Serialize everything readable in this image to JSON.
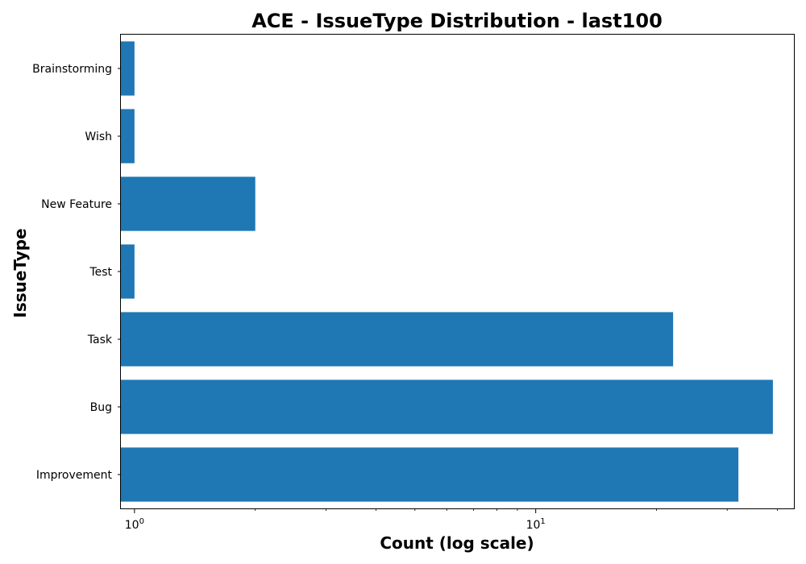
{
  "chart_data": {
    "type": "bar",
    "orientation": "horizontal",
    "title": "ACE - IssueType Distribution - last100",
    "xlabel": "Count (log scale)",
    "ylabel": "IssueType",
    "xscale": "log",
    "xlim": [
      0.925,
      44
    ],
    "categories": [
      "Improvement",
      "Bug",
      "Task",
      "Test",
      "New Feature",
      "Wish",
      "Brainstorming"
    ],
    "values": [
      32,
      39,
      22,
      1,
      2,
      1,
      1
    ],
    "xticks": [
      {
        "value": 1,
        "base": "10",
        "exp": "0"
      },
      {
        "value": 10,
        "base": "10",
        "exp": "1"
      }
    ],
    "minor_ticks": [
      2,
      3,
      4,
      5,
      6,
      7,
      8,
      9,
      20,
      30,
      40
    ],
    "bar_color": "#1f77b4",
    "grid": false,
    "legend": "none"
  }
}
